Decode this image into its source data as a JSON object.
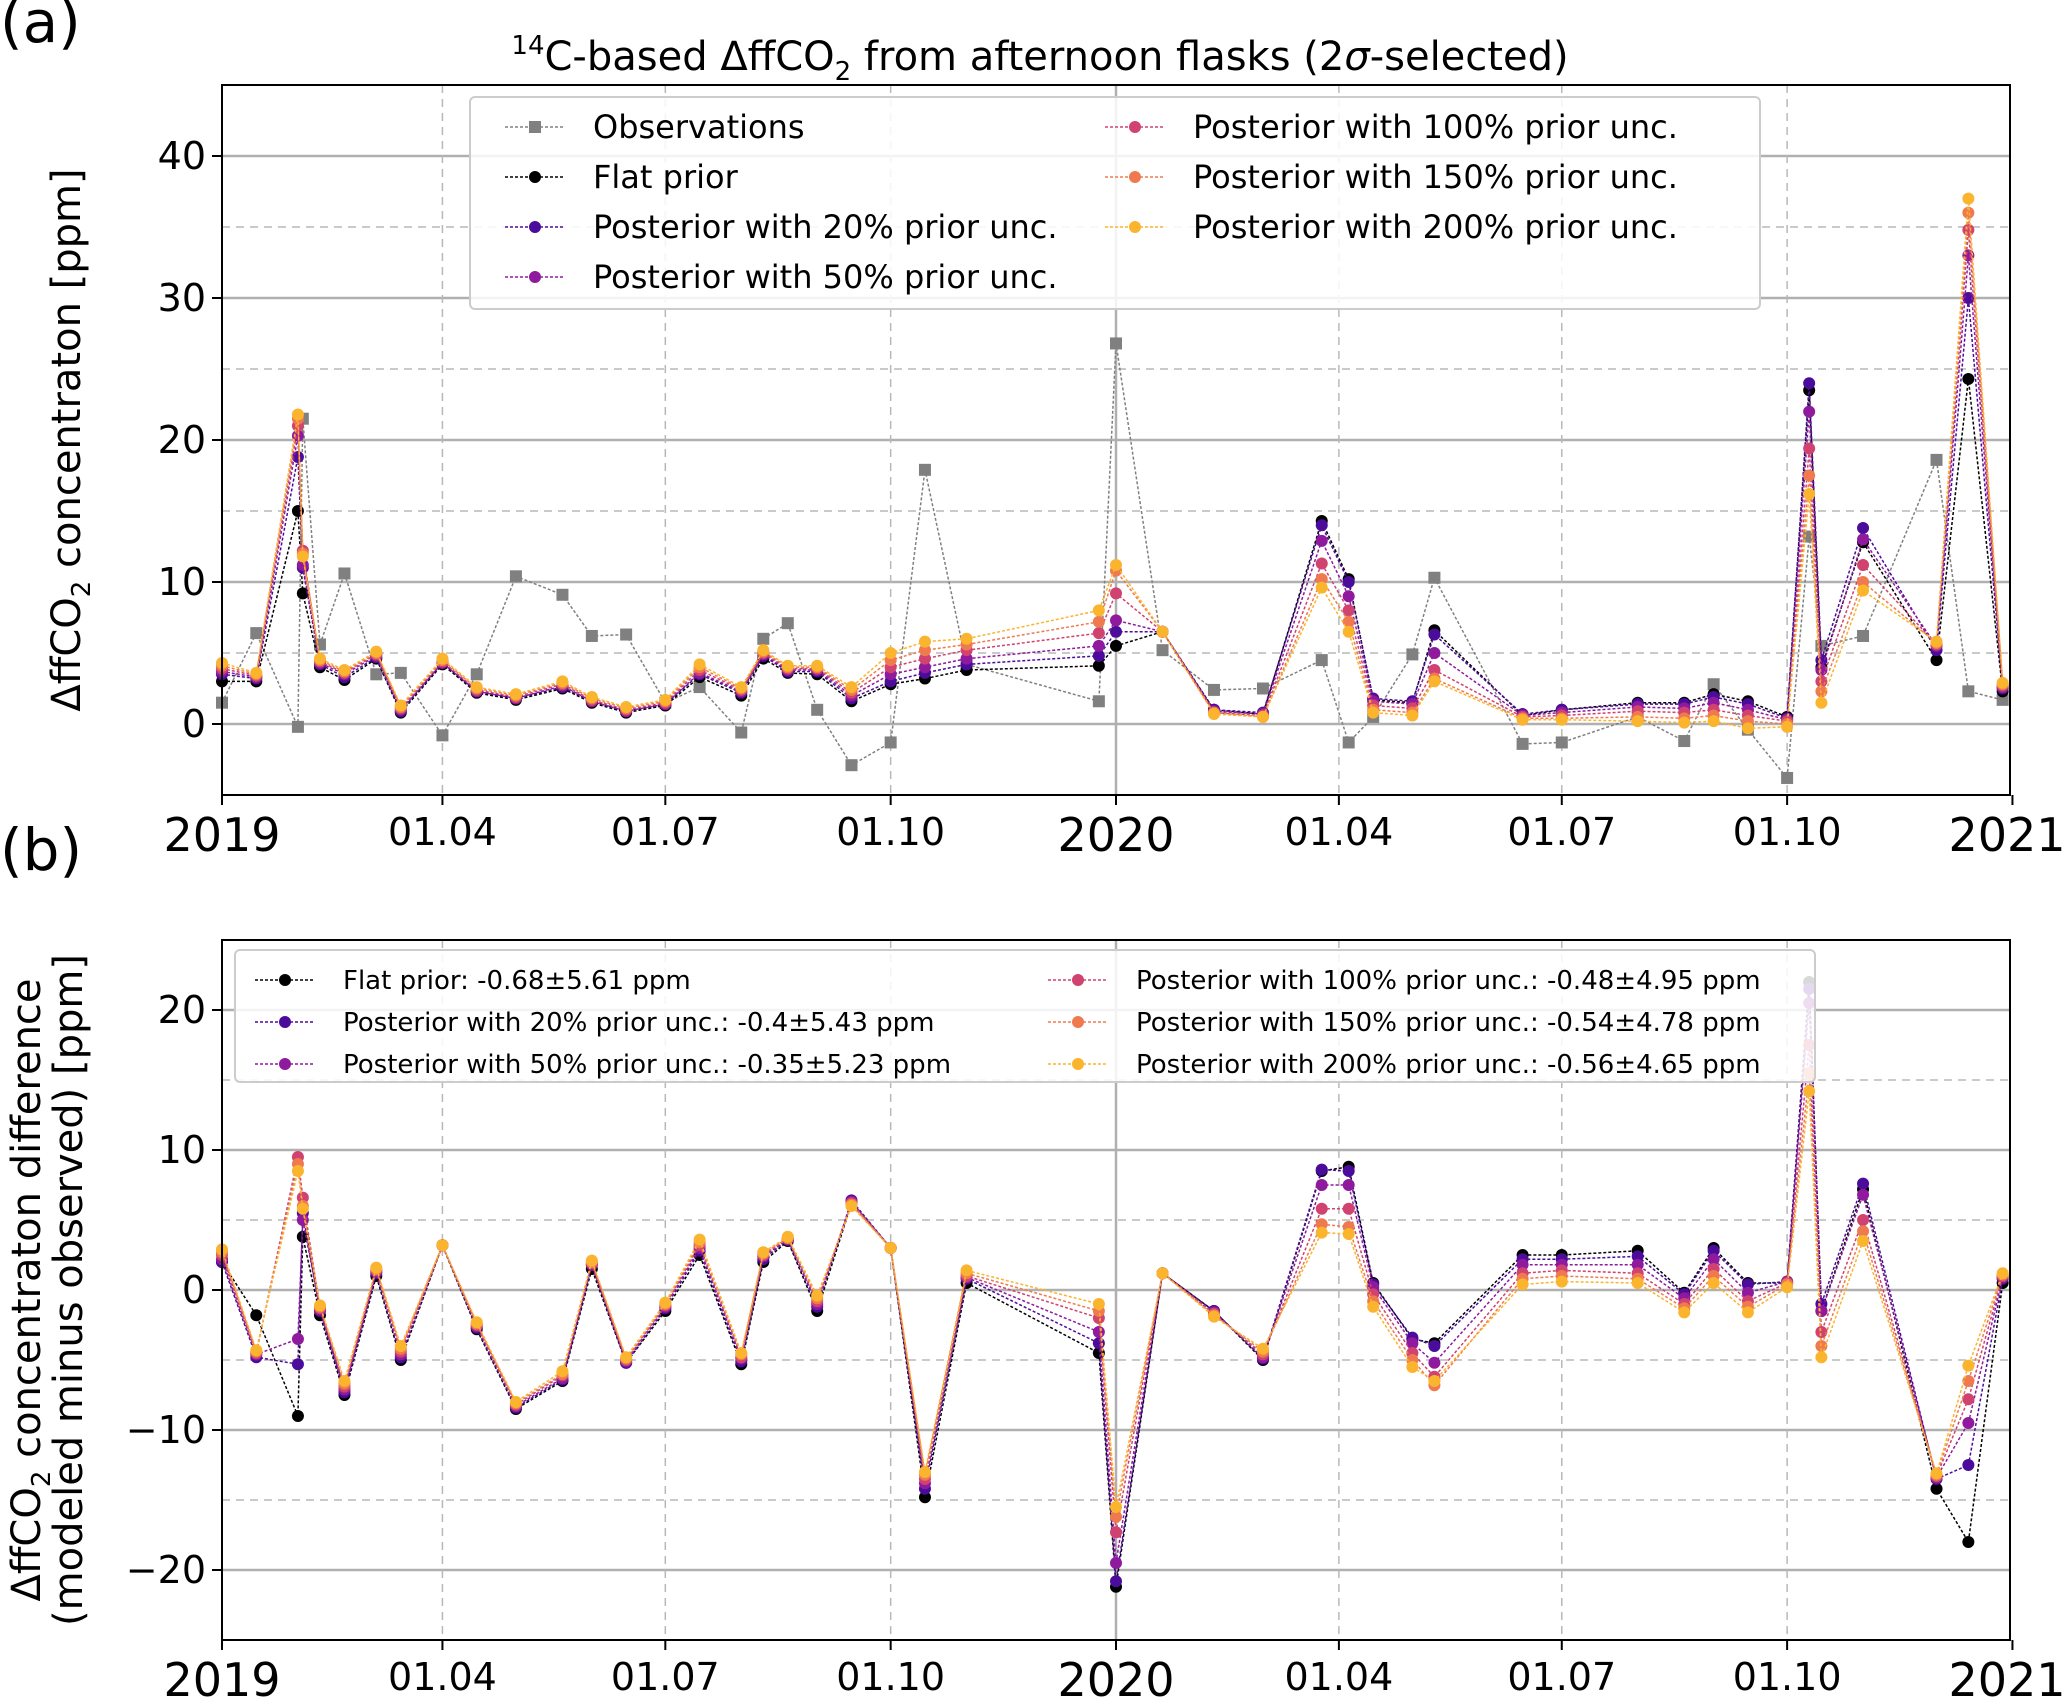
{
  "figure": {
    "panel_a_label": "(a)",
    "panel_b_label": "(b)",
    "title_prefix": "14",
    "title_body": "C-based ΔffCO",
    "title_sub": "2",
    "title_suffix": " from afternoon flasks (2",
    "title_sigma": "σ",
    "title_end": "-selected)"
  },
  "colors": {
    "observations": "#808080",
    "flat": "#000000",
    "p20": "#4b0c9c",
    "p50": "#8f1a9e",
    "p100": "#d0426f",
    "p150": "#ef7a4f",
    "p200": "#fbb42e"
  },
  "chart_data": [
    {
      "type": "line",
      "panel": "a",
      "ylabel_main": "ΔffCO",
      "ylabel_sub": "2",
      "ylabel_end": " concentraton [ppm]",
      "ylim": [
        -5,
        45
      ],
      "yticks": [
        0,
        10,
        20,
        30,
        40
      ],
      "xlim": [
        "2019-01-01",
        "2020-12-31"
      ],
      "xticks": [
        {
          "date": "2019-01-01",
          "label": "2019",
          "major": true
        },
        {
          "date": "2019-04-01",
          "label": "01.04",
          "major": false
        },
        {
          "date": "2019-07-01",
          "label": "01.07",
          "major": false
        },
        {
          "date": "2019-10-01",
          "label": "01.10",
          "major": false
        },
        {
          "date": "2020-01-01",
          "label": "2020",
          "major": true
        },
        {
          "date": "2020-04-01",
          "label": "01.04",
          "major": false
        },
        {
          "date": "2020-07-01",
          "label": "01.07",
          "major": false
        },
        {
          "date": "2020-10-01",
          "label": "01.10",
          "major": false
        },
        {
          "date": "2021-01-01",
          "label": "2021",
          "major": true
        }
      ],
      "grid": true,
      "legend_position": "top-center",
      "x": [
        "2019-01-01",
        "2019-01-15",
        "2019-02-01",
        "2019-02-03",
        "2019-02-10",
        "2019-02-20",
        "2019-03-05",
        "2019-03-15",
        "2019-04-01",
        "2019-04-15",
        "2019-05-01",
        "2019-05-20",
        "2019-06-01",
        "2019-06-15",
        "2019-07-01",
        "2019-07-15",
        "2019-08-01",
        "2019-08-10",
        "2019-08-20",
        "2019-09-01",
        "2019-09-15",
        "2019-10-01",
        "2019-10-15",
        "2019-11-01",
        "2019-12-25",
        "2020-01-01",
        "2020-01-20",
        "2020-02-10",
        "2020-03-01",
        "2020-03-25",
        "2020-04-05",
        "2020-04-15",
        "2020-05-01",
        "2020-05-10",
        "2020-06-15",
        "2020-07-01",
        "2020-08-01",
        "2020-08-20",
        "2020-09-01",
        "2020-09-15",
        "2020-10-01",
        "2020-10-10",
        "2020-10-15",
        "2020-11-01",
        "2020-12-01",
        "2020-12-14",
        "2020-12-28"
      ],
      "series": [
        {
          "key": "observations",
          "name": "Observations",
          "marker": "square",
          "values": [
            1.5,
            6.4,
            -0.2,
            21.5,
            5.6,
            10.6,
            3.5,
            3.6,
            -0.8,
            3.5,
            10.4,
            9.1,
            6.2,
            6.3,
            1.5,
            2.6,
            -0.6,
            6.0,
            7.1,
            1.0,
            -2.9,
            -1.3,
            17.9,
            4.2,
            1.6,
            26.8,
            5.2,
            2.4,
            2.5,
            4.5,
            -1.3,
            0.5,
            4.9,
            10.3,
            -1.4,
            -1.3,
            0.5,
            -1.2,
            2.8,
            -0.4,
            -3.8,
            13.2,
            5.5,
            6.2,
            18.6,
            2.3,
            1.7
          ]
        },
        {
          "key": "flat",
          "name": "Flat prior",
          "marker": "circle",
          "values": [
            3.0,
            3.0,
            15.0,
            9.2,
            4.0,
            3.1,
            4.6,
            0.8,
            4.2,
            2.2,
            1.7,
            2.5,
            1.5,
            0.8,
            1.3,
            3.3,
            2.0,
            4.6,
            3.6,
            3.5,
            1.6,
            2.8,
            3.2,
            3.8,
            4.1,
            5.5,
            6.5,
            1.0,
            0.7,
            14.3,
            10.2,
            1.7,
            1.5,
            6.6,
            0.6,
            1.0,
            1.5,
            1.5,
            2.1,
            1.6,
            0.5,
            23.5,
            4.0,
            12.8,
            4.5,
            24.3,
            2.3
          ]
        },
        {
          "key": "p20",
          "name": "Posterior with 20% prior unc.",
          "marker": "circle",
          "values": [
            3.5,
            3.2,
            18.8,
            11.0,
            4.2,
            3.3,
            4.7,
            0.9,
            4.3,
            2.3,
            1.8,
            2.6,
            1.6,
            0.9,
            1.4,
            3.5,
            2.2,
            4.8,
            3.7,
            3.7,
            1.8,
            3.0,
            3.6,
            4.2,
            4.8,
            6.5,
            6.5,
            1.0,
            0.8,
            14.0,
            10.0,
            1.8,
            1.6,
            6.3,
            0.7,
            1.0,
            1.4,
            1.4,
            1.9,
            1.4,
            0.4,
            24.0,
            4.5,
            13.8,
            5.2,
            30.0,
            2.5
          ]
        },
        {
          "key": "p50",
          "name": "Posterior with 50% prior unc.",
          "marker": "circle",
          "values": [
            3.7,
            3.3,
            20.3,
            11.2,
            4.3,
            3.5,
            4.8,
            1.0,
            4.3,
            2.3,
            1.8,
            2.7,
            1.6,
            0.9,
            1.4,
            3.6,
            2.3,
            4.9,
            3.8,
            3.8,
            2.0,
            3.5,
            4.0,
            4.6,
            5.5,
            7.3,
            6.5,
            0.9,
            0.7,
            12.9,
            9.0,
            1.6,
            1.4,
            5.0,
            0.6,
            0.8,
            1.2,
            1.1,
            1.5,
            1.0,
            0.3,
            22.0,
            3.8,
            13.0,
            5.5,
            33.0,
            2.6
          ]
        },
        {
          "key": "p100",
          "name": "Posterior with 100% prior unc.",
          "marker": "circle",
          "values": [
            3.9,
            3.4,
            21.0,
            12.2,
            4.4,
            3.6,
            4.9,
            1.1,
            4.4,
            2.4,
            1.9,
            2.8,
            1.7,
            1.0,
            1.5,
            3.8,
            2.4,
            5.0,
            3.9,
            3.9,
            2.2,
            4.0,
            4.6,
            5.2,
            6.4,
            9.2,
            6.5,
            0.8,
            0.6,
            11.3,
            8.0,
            1.3,
            1.1,
            3.8,
            0.5,
            0.6,
            0.9,
            0.8,
            1.0,
            0.6,
            0.2,
            19.4,
            3.0,
            11.2,
            5.6,
            34.8,
            2.7
          ]
        },
        {
          "key": "p150",
          "name": "Posterior with 150% prior unc.",
          "marker": "circle",
          "values": [
            4.1,
            3.5,
            21.5,
            12.0,
            4.5,
            3.7,
            5.0,
            1.2,
            4.5,
            2.5,
            2.0,
            2.9,
            1.8,
            1.1,
            1.6,
            4.0,
            2.5,
            5.1,
            4.0,
            4.0,
            2.4,
            4.5,
            5.2,
            5.6,
            7.2,
            10.8,
            6.5,
            0.8,
            0.5,
            10.2,
            7.2,
            1.0,
            0.8,
            3.2,
            0.4,
            0.4,
            0.5,
            0.4,
            0.6,
            0.2,
            0.0,
            17.5,
            2.3,
            10.0,
            5.7,
            36.0,
            2.8
          ]
        },
        {
          "key": "p200",
          "name": "Posterior with 200% prior unc.",
          "marker": "circle",
          "values": [
            4.3,
            3.6,
            21.8,
            11.8,
            4.6,
            3.8,
            5.1,
            1.3,
            4.6,
            2.6,
            2.1,
            3.0,
            1.9,
            1.2,
            1.7,
            4.2,
            2.6,
            5.2,
            4.1,
            4.1,
            2.6,
            5.0,
            5.8,
            6.0,
            8.0,
            11.2,
            6.5,
            0.7,
            0.5,
            9.6,
            6.5,
            0.8,
            0.6,
            3.0,
            0.3,
            0.3,
            0.2,
            0.1,
            0.2,
            -0.3,
            -0.2,
            16.2,
            1.5,
            9.4,
            5.8,
            37.0,
            2.9
          ]
        }
      ]
    },
    {
      "type": "line",
      "panel": "b",
      "ylabel_main": "ΔffCO",
      "ylabel_sub": "2",
      "ylabel_end": " concentraton difference",
      "ylabel_line2": "(modeled minus observed) [ppm]",
      "ylim": [
        -25,
        25
      ],
      "yticks": [
        -20,
        -10,
        0,
        10,
        20
      ],
      "xlim": [
        "2019-01-01",
        "2020-12-31"
      ],
      "xticks": [
        {
          "date": "2019-01-01",
          "label": "2019",
          "major": true
        },
        {
          "date": "2019-04-01",
          "label": "01.04",
          "major": false
        },
        {
          "date": "2019-07-01",
          "label": "01.07",
          "major": false
        },
        {
          "date": "2019-10-01",
          "label": "01.10",
          "major": false
        },
        {
          "date": "2020-01-01",
          "label": "2020",
          "major": true
        },
        {
          "date": "2020-04-01",
          "label": "01.04",
          "major": false
        },
        {
          "date": "2020-07-01",
          "label": "01.07",
          "major": false
        },
        {
          "date": "2020-10-01",
          "label": "01.10",
          "major": false
        },
        {
          "date": "2021-01-01",
          "label": "2021",
          "major": true
        }
      ],
      "grid": true,
      "legend_position": "top-center",
      "x": [
        "2019-01-01",
        "2019-01-15",
        "2019-02-01",
        "2019-02-03",
        "2019-02-10",
        "2019-02-20",
        "2019-03-05",
        "2019-03-15",
        "2019-04-01",
        "2019-04-15",
        "2019-05-01",
        "2019-05-20",
        "2019-06-01",
        "2019-06-15",
        "2019-07-01",
        "2019-07-15",
        "2019-08-01",
        "2019-08-10",
        "2019-08-20",
        "2019-09-01",
        "2019-09-15",
        "2019-10-01",
        "2019-10-15",
        "2019-11-01",
        "2019-12-25",
        "2020-01-01",
        "2020-01-20",
        "2020-02-10",
        "2020-03-01",
        "2020-03-25",
        "2020-04-05",
        "2020-04-15",
        "2020-05-01",
        "2020-05-10",
        "2020-06-15",
        "2020-07-01",
        "2020-08-01",
        "2020-08-20",
        "2020-09-01",
        "2020-09-15",
        "2020-10-01",
        "2020-10-10",
        "2020-10-15",
        "2020-11-01",
        "2020-12-01",
        "2020-12-14",
        "2020-12-28"
      ],
      "series": [
        {
          "key": "flat",
          "name": "Flat prior: -0.68±5.61 ppm",
          "marker": "circle",
          "values": [
            2.0,
            -1.8,
            -9.0,
            3.8,
            -1.8,
            -7.5,
            1.0,
            -5.0,
            3.2,
            -2.8,
            -8.5,
            -6.5,
            1.5,
            -5.2,
            -1.5,
            2.5,
            -5.3,
            2.0,
            3.5,
            -1.5,
            6.2,
            3.0,
            -14.8,
            0.5,
            -4.5,
            -21.2,
            1.2,
            -1.5,
            -5.0,
            8.5,
            8.8,
            0.5,
            -3.5,
            -3.8,
            2.5,
            2.5,
            2.8,
            -0.2,
            3.0,
            0.5,
            0.5,
            22.0,
            -1.5,
            7.2,
            -14.2,
            -18.0,
            0.5
          ]
        },
        {
          "key": "p20",
          "name": "Posterior with 20% prior unc.: -0.4±5.43 ppm",
          "marker": "circle",
          "values": [
            2.0,
            -4.8,
            -5.3,
            5.5,
            -1.5,
            -7.3,
            1.2,
            -4.8,
            3.2,
            -2.7,
            -8.4,
            -6.4,
            1.8,
            -5.2,
            -1.3,
            2.8,
            -5.1,
            2.2,
            3.6,
            -1.2,
            6.4,
            3.0,
            -14.2,
            0.8,
            -3.8,
            -20.8,
            1.2,
            -1.5,
            -4.9,
            8.6,
            8.5,
            0.4,
            -3.4,
            -4.0,
            2.2,
            2.2,
            2.4,
            -0.3,
            2.8,
            0.4,
            0.6,
            21.5,
            -1.0,
            7.6,
            -13.5,
            -12.5,
            0.8
          ]
        },
        {
          "key": "p50",
          "name": "Posterior with 50% prior unc.: -0.35±5.23 ppm",
          "marker": "circle",
          "values": [
            2.2,
            -4.6,
            -3.5,
            5.0,
            -1.4,
            -7.1,
            1.3,
            -4.6,
            3.2,
            -2.6,
            -8.3,
            -6.3,
            1.8,
            -5.1,
            -1.2,
            3.0,
            -4.9,
            2.4,
            3.6,
            -1.0,
            6.3,
            3.0,
            -13.8,
            0.9,
            -3.0,
            -19.5,
            1.2,
            -1.6,
            -4.8,
            7.5,
            7.5,
            0.2,
            -3.8,
            -5.2,
            1.8,
            1.8,
            1.8,
            -0.6,
            2.2,
            -0.2,
            0.6,
            20.5,
            -1.5,
            6.8,
            -13.4,
            -9.5,
            0.9
          ]
        },
        {
          "key": "p100",
          "name": "Posterior with 100% prior unc.: -0.48±4.95 ppm",
          "marker": "circle",
          "values": [
            2.5,
            -4.5,
            9.5,
            6.6,
            -1.3,
            -6.9,
            1.4,
            -4.4,
            3.2,
            -2.5,
            -8.2,
            -6.1,
            1.9,
            -5.0,
            -1.1,
            3.2,
            -4.8,
            2.5,
            3.7,
            -0.8,
            6.2,
            3.0,
            -13.5,
            1.0,
            -2.0,
            -17.3,
            1.2,
            -1.7,
            -4.6,
            5.8,
            5.8,
            -0.3,
            -4.5,
            -6.2,
            1.2,
            1.4,
            1.2,
            -1.0,
            1.5,
            -0.8,
            0.5,
            17.5,
            -3.0,
            5.0,
            -13.3,
            -7.8,
            1.0
          ]
        },
        {
          "key": "p150",
          "name": "Posterior with 150% prior unc.: -0.54±4.78 ppm",
          "marker": "circle",
          "values": [
            2.7,
            -4.4,
            9.0,
            6.0,
            -1.2,
            -6.7,
            1.5,
            -4.2,
            3.2,
            -2.4,
            -8.1,
            -6.0,
            2.0,
            -4.9,
            -1.0,
            3.4,
            -4.6,
            2.6,
            3.7,
            -0.6,
            6.1,
            3.0,
            -13.2,
            1.2,
            -1.5,
            -16.2,
            1.2,
            -1.8,
            -4.4,
            4.7,
            4.5,
            -0.8,
            -5.0,
            -6.8,
            0.8,
            1.0,
            0.8,
            -1.3,
            1.0,
            -1.2,
            0.4,
            15.5,
            -4.0,
            4.2,
            -13.2,
            -6.5,
            1.1
          ]
        },
        {
          "key": "p200",
          "name": "Posterior with 200% prior unc.: -0.56±4.65 ppm",
          "marker": "circle",
          "values": [
            2.9,
            -4.3,
            8.5,
            5.8,
            -1.1,
            -6.5,
            1.6,
            -4.0,
            3.2,
            -2.3,
            -8.0,
            -5.8,
            2.1,
            -4.8,
            -0.9,
            3.6,
            -4.5,
            2.7,
            3.8,
            -0.4,
            6.0,
            3.0,
            -13.0,
            1.4,
            -1.0,
            -15.5,
            1.2,
            -1.9,
            -4.2,
            4.1,
            4.0,
            -1.2,
            -5.5,
            -6.5,
            0.4,
            0.6,
            0.5,
            -1.6,
            0.5,
            -1.6,
            0.2,
            14.2,
            -4.8,
            3.5,
            -13.1,
            -5.4,
            1.2
          ]
        }
      ]
    }
  ]
}
